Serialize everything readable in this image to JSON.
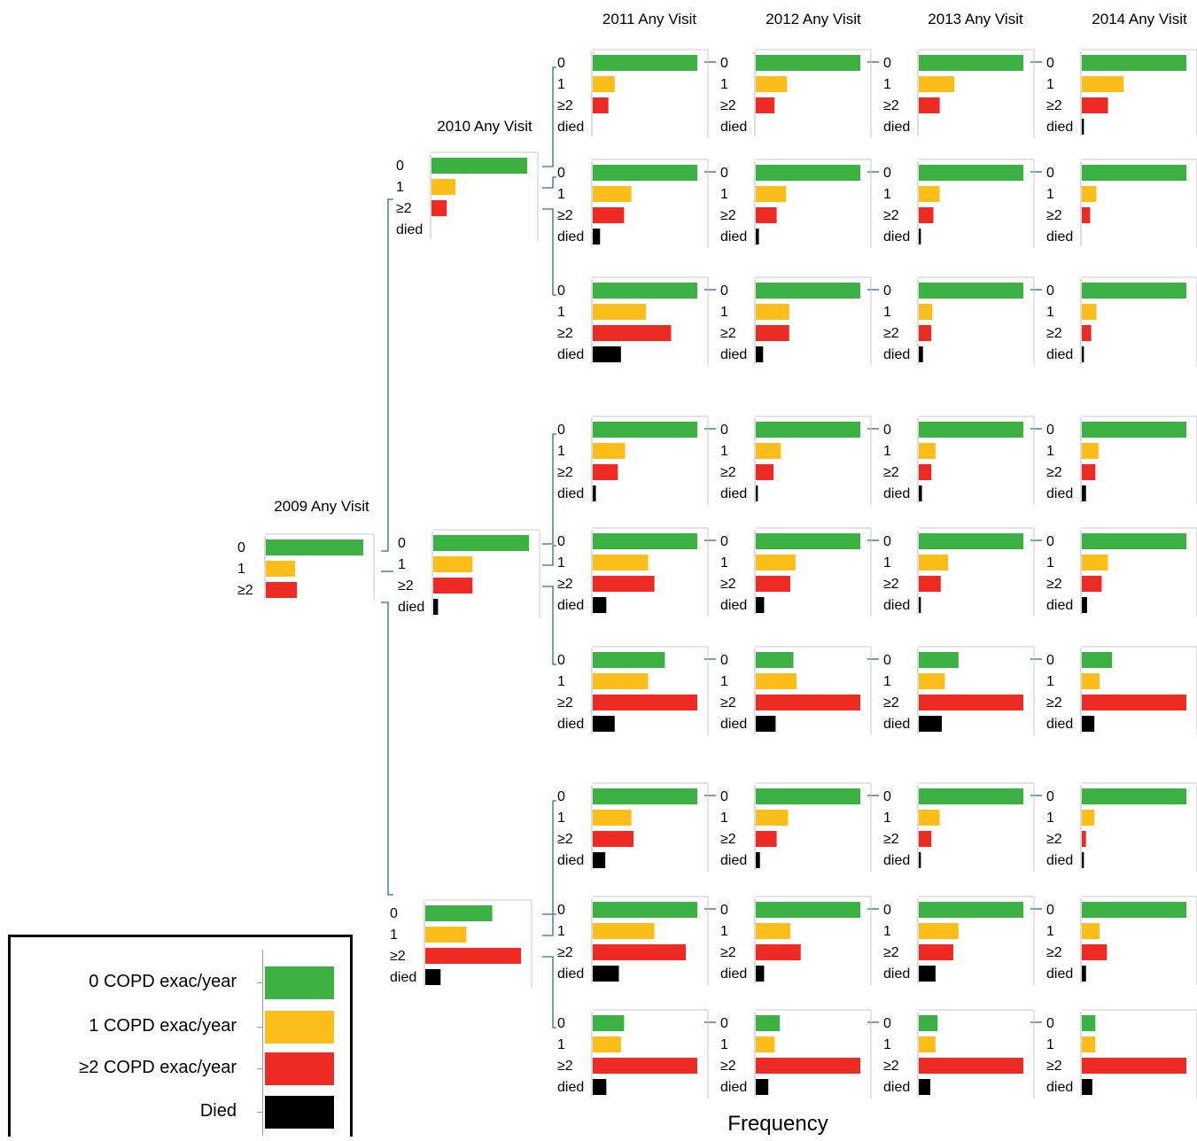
{
  "chart_data": {
    "type": "bar",
    "title": "",
    "xlabel": "Frequency",
    "column_headers": [
      "2009 Any Visit",
      "2010 Any Visit",
      "2011 Any Visit",
      "2012 Any Visit",
      "2013 Any Visit",
      "2014 Any Visit"
    ],
    "category_labels": [
      "0",
      "1",
      "≥2",
      "died"
    ],
    "colors": {
      "0": "#3cb043",
      "1": "#fbbd1a",
      "≥2": "#ee2a24",
      "died": "#000000"
    },
    "legend": [
      {
        "label": "0 COPD exac/year",
        "color": "#3cb043"
      },
      {
        "label": "1 COPD exac/year",
        "color": "#fbbd1a"
      },
      {
        "label": "≥2 COPD exac/year",
        "color": "#ee2a24"
      },
      {
        "label": "Died",
        "color": "#000000"
      }
    ],
    "note": "Values are relative bar lengths (share of panel maximum, 0-1); no numeric axis is printed.",
    "panels": {
      "2009": {
        "values": [
          1.0,
          0.3,
          0.32
        ]
      },
      "2010": [
        {
          "from_2009": "0",
          "values": [
            1.0,
            0.25,
            0.16,
            0
          ]
        },
        {
          "from_2009": "1",
          "values": [
            1.0,
            0.41,
            0.41,
            0.05
          ]
        },
        {
          "from_2009": "≥2",
          "values": [
            0.7,
            0.43,
            1.0,
            0.16
          ]
        }
      ],
      "2011": [
        {
          "values": [
            1.0,
            0.21,
            0.15,
            0
          ]
        },
        {
          "values": [
            1.0,
            0.37,
            0.3,
            0.07
          ]
        },
        {
          "values": [
            1.0,
            0.51,
            0.75,
            0.27
          ]
        },
        {
          "values": [
            1.0,
            0.31,
            0.24,
            0.03
          ]
        },
        {
          "values": [
            1.0,
            0.53,
            0.59,
            0.13
          ]
        },
        {
          "values": [
            0.69,
            0.53,
            1.0,
            0.21
          ]
        },
        {
          "values": [
            1.0,
            0.37,
            0.39,
            0.12
          ]
        },
        {
          "values": [
            1.0,
            0.59,
            0.89,
            0.25
          ]
        },
        {
          "values": [
            0.3,
            0.27,
            1.0,
            0.13
          ]
        }
      ],
      "2012": [
        {
          "values": [
            1.0,
            0.3,
            0.18,
            0
          ]
        },
        {
          "values": [
            1.0,
            0.29,
            0.2,
            0.03
          ]
        },
        {
          "values": [
            1.0,
            0.32,
            0.32,
            0.07
          ]
        },
        {
          "values": [
            1.0,
            0.24,
            0.17,
            0.02
          ]
        },
        {
          "values": [
            1.0,
            0.38,
            0.33,
            0.08
          ]
        },
        {
          "values": [
            0.36,
            0.39,
            1.0,
            0.19
          ]
        },
        {
          "values": [
            1.0,
            0.31,
            0.2,
            0.04
          ]
        },
        {
          "values": [
            1.0,
            0.33,
            0.43,
            0.08
          ]
        },
        {
          "values": [
            0.23,
            0.18,
            1.0,
            0.12
          ]
        }
      ],
      "2013": [
        {
          "values": [
            1.0,
            0.34,
            0.2,
            0
          ]
        },
        {
          "values": [
            1.0,
            0.2,
            0.14,
            0.02
          ]
        },
        {
          "values": [
            1.0,
            0.13,
            0.12,
            0.04
          ]
        },
        {
          "values": [
            1.0,
            0.16,
            0.12,
            0.03
          ]
        },
        {
          "values": [
            1.0,
            0.28,
            0.21,
            0.02
          ]
        },
        {
          "values": [
            0.38,
            0.25,
            1.0,
            0.22
          ]
        },
        {
          "values": [
            1.0,
            0.2,
            0.12,
            0.02
          ]
        },
        {
          "values": [
            1.0,
            0.38,
            0.33,
            0.16
          ]
        },
        {
          "values": [
            0.18,
            0.16,
            1.0,
            0.11
          ]
        }
      ],
      "2014": [
        {
          "values": [
            1.0,
            0.4,
            0.25,
            0.02
          ]
        },
        {
          "values": [
            1.0,
            0.14,
            0.08,
            0
          ]
        },
        {
          "values": [
            1.0,
            0.14,
            0.09,
            0.02
          ]
        },
        {
          "values": [
            1.0,
            0.16,
            0.13,
            0.04
          ]
        },
        {
          "values": [
            1.0,
            0.25,
            0.19,
            0.05
          ]
        },
        {
          "values": [
            0.29,
            0.17,
            1.0,
            0.12
          ]
        },
        {
          "values": [
            1.0,
            0.12,
            0.04,
            0.02
          ]
        },
        {
          "values": [
            1.0,
            0.17,
            0.24,
            0.04
          ]
        },
        {
          "values": [
            0.13,
            0.13,
            1.0,
            0.1
          ]
        }
      ]
    }
  }
}
